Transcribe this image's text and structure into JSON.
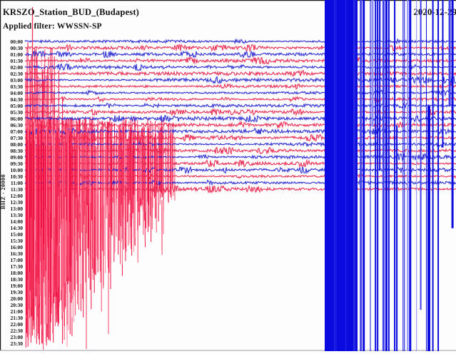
{
  "header": {
    "title": "KRSZO_Station_BUD_(Budapest)",
    "filter_label": "Applied filter: WWSSN-SP",
    "date_label": "2020-12-29"
  },
  "axis": {
    "channel_label": "BHZ - 20000"
  },
  "chart_data": {
    "type": "line",
    "variant": "helicorder-drum-plot",
    "title": "KRSZO_Station_BUD_(Budapest)",
    "subtitle": "Applied filter: WWSSN-SP",
    "date_label": "2020-12-29",
    "y_axis_label": "BHZ - 20000",
    "row_interval_minutes": 30,
    "categories": [
      "00:00",
      "00:30",
      "01:00",
      "01:30",
      "02:00",
      "02:30",
      "03:00",
      "03:30",
      "04:00",
      "04:30",
      "05:00",
      "05:30",
      "06:00",
      "06:30",
      "07:00",
      "07:30",
      "08:00",
      "08:30",
      "09:00",
      "09:30",
      "10:00",
      "10:30",
      "11:00",
      "11:30",
      "12:00",
      "12:30",
      "13:00",
      "13:30",
      "14:00",
      "14:30",
      "15:00",
      "15:30",
      "16:00",
      "16:30",
      "17:00",
      "17:30",
      "18:00",
      "18:30",
      "19:00",
      "19:30",
      "20:00",
      "20:30",
      "21:00",
      "21:30",
      "22:00",
      "22:30",
      "23:00",
      "23:30"
    ],
    "rows_with_trace_data": 24,
    "last_traced_row": "11:30",
    "trace_colors": {
      "even_rows": "#1a1ace",
      "odd_rows": "#e61a46"
    },
    "legend_position": "none",
    "grid": false,
    "background": "#fdfdfd",
    "frame_color": "#1a1a1a",
    "events": [
      {
        "name": "red-saturated-event",
        "color": "#ee1245",
        "approx_start": "06:30",
        "appearance": "dense clipped red spikes in lower-left quadrant with tails decaying down to 23:30 rows"
      },
      {
        "name": "blue-saturated-event",
        "color": "#0b0bdf",
        "approx_start": "11:00",
        "appearance": "solid clipped blue band plus dense full-height blue spikes covering the right side of the plot, overlapping the date label"
      }
    ]
  }
}
